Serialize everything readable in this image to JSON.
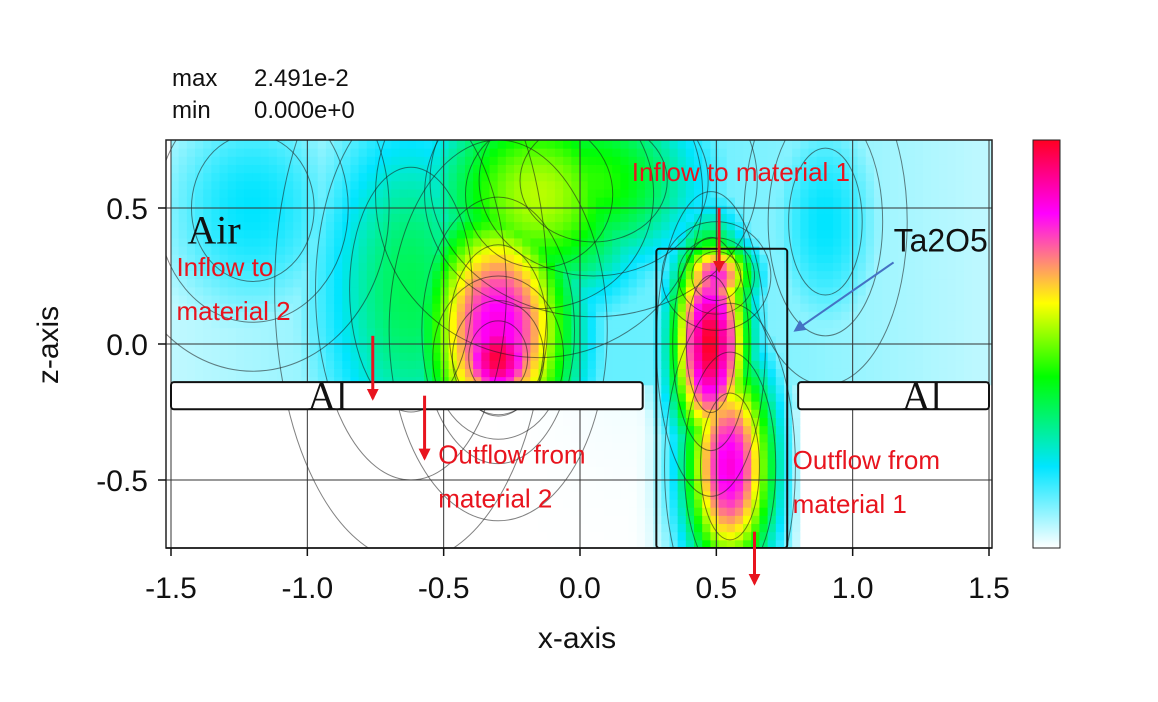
{
  "stats": {
    "max_label": "max",
    "max_value": "2.491e-2",
    "min_label": "min",
    "min_value": "0.000e+0"
  },
  "colors": {
    "annotation_red": "#e8141e",
    "arrow_blue": "#4472c4",
    "scale": [
      "#ffffff",
      "#00e5ff",
      "#00ff00",
      "#ffff00",
      "#ff00ff",
      "#ff0022"
    ]
  },
  "chart_data": {
    "type": "heatmap",
    "title": "",
    "xlabel": "x-axis",
    "ylabel": "z-axis",
    "xlim": [
      -1.5,
      1.5
    ],
    "ylim": [
      -0.75,
      0.75
    ],
    "x_ticks": [
      -1.5,
      -1.0,
      -0.5,
      0.0,
      0.5,
      1.0,
      1.5
    ],
    "x_tick_labels": [
      "-1.5",
      "-1.0",
      "-0.5",
      "0.0",
      "0.5",
      "1.0",
      "1.5"
    ],
    "y_ticks": [
      0.5,
      0.0,
      -0.5
    ],
    "y_tick_labels": [
      "0.5",
      "0.0",
      "-0.5"
    ],
    "grid": true,
    "colorbar": {
      "min": 0.0,
      "max": 0.02491
    },
    "hotspots": [
      {
        "x": -0.3,
        "z": 0.05,
        "rx": 0.2,
        "rz": 0.35,
        "v": 0.85
      },
      {
        "x": -0.3,
        "z": -0.05,
        "rx": 0.12,
        "rz": 0.15,
        "v": 0.98
      },
      {
        "x": -0.15,
        "z": 0.55,
        "rx": 0.3,
        "rz": 0.3,
        "v": 0.55
      },
      {
        "x": 0.48,
        "z": 0.0,
        "rx": 0.1,
        "rz": 0.28,
        "v": 1.0
      },
      {
        "x": 0.55,
        "z": -0.45,
        "rx": 0.12,
        "rz": 0.3,
        "v": 0.85
      },
      {
        "x": 0.5,
        "z": 0.25,
        "rx": 0.1,
        "rz": 0.1,
        "v": 0.8
      },
      {
        "x": -0.62,
        "z": 0.2,
        "rx": 0.25,
        "rz": 0.5,
        "v": 0.35
      },
      {
        "x": 0.05,
        "z": 0.6,
        "rx": 0.3,
        "rz": 0.25,
        "v": 0.45
      },
      {
        "x": -1.2,
        "z": 0.5,
        "rx": 0.25,
        "rz": 0.3,
        "v": 0.2
      },
      {
        "x": 0.9,
        "z": 0.45,
        "rx": 0.15,
        "rz": 0.3,
        "v": 0.2
      }
    ],
    "regions": [
      {
        "label": "Air",
        "x": -1.44,
        "z": 0.37
      },
      {
        "label": "Ta2O5",
        "x": 1.15,
        "z": 0.34
      },
      {
        "label": "Al",
        "x": -1.0,
        "z": -0.24
      },
      {
        "label": "Al",
        "x": 1.18,
        "z": -0.24
      }
    ],
    "structures": {
      "al_left": {
        "x": [
          -1.5,
          0.23
        ],
        "z": [
          -0.24,
          -0.14
        ]
      },
      "al_right": {
        "x": [
          0.8,
          1.5
        ],
        "z": [
          -0.24,
          -0.14
        ]
      },
      "ta2o5_column": {
        "x": [
          0.28,
          0.76
        ],
        "z": [
          -0.75,
          0.35
        ]
      }
    },
    "annotations": [
      {
        "lines": [
          "Inflow to material 1"
        ],
        "x": 0.19,
        "z": 0.6
      },
      {
        "lines": [
          "Inflow to",
          "material 2"
        ],
        "x": -1.48,
        "z": 0.25
      },
      {
        "lines": [
          "Outflow from",
          "material 2"
        ],
        "x": -0.52,
        "z": -0.44
      },
      {
        "lines": [
          "Outflow from",
          "material 1"
        ],
        "x": 0.78,
        "z": -0.46
      }
    ],
    "arrows": [
      {
        "color": "red",
        "x1": 0.51,
        "z1": 0.5,
        "x2": 0.51,
        "z2": 0.27
      },
      {
        "color": "red",
        "x1": -0.76,
        "z1": 0.03,
        "x2": -0.76,
        "z2": -0.2
      },
      {
        "color": "red",
        "x1": -0.57,
        "z1": -0.19,
        "x2": -0.57,
        "z2": -0.42
      },
      {
        "color": "red",
        "x1": 0.64,
        "z1": -0.69,
        "x2": 0.64,
        "z2": -0.88
      },
      {
        "color": "blue",
        "x1": 1.15,
        "z1": 0.3,
        "x2": 0.79,
        "z2": 0.05
      }
    ]
  }
}
